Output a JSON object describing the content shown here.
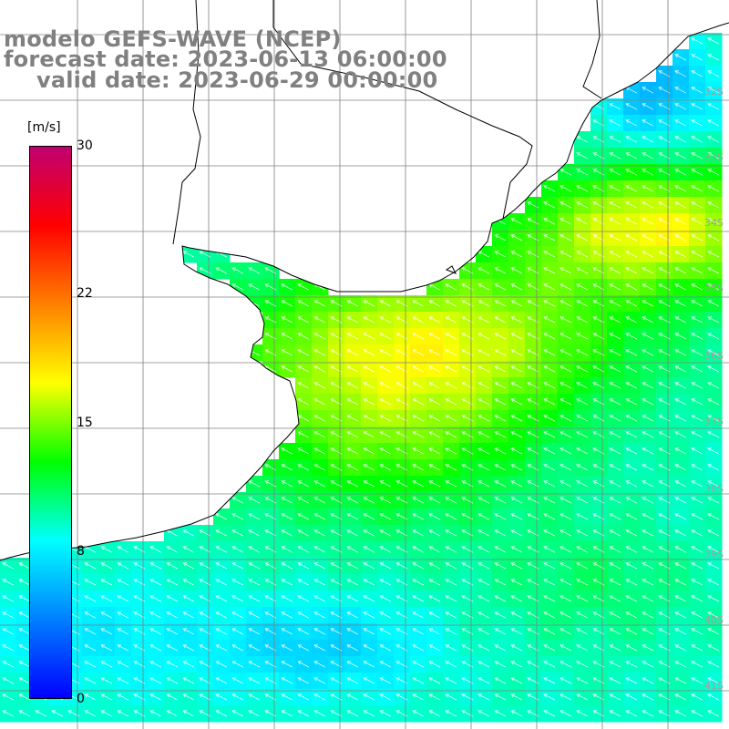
{
  "title": {
    "line1": "modelo GEFS-WAVE (NCEP)",
    "line2": "forecast date: 2023-06-13 06:00:00",
    "line3": "valid date: 2023-06-29 00:00:00"
  },
  "colorbar": {
    "unit": "[m/s]",
    "ticks": [
      "30",
      "22",
      "15",
      "8",
      "0"
    ],
    "tick_values": [
      30,
      22,
      15,
      8,
      0
    ],
    "range": [
      0,
      30
    ],
    "colors": [
      "#0000ff",
      "#0080ff",
      "#00ffff",
      "#00ff00",
      "#ffff00",
      "#ff8000",
      "#ff0000",
      "#c00070"
    ]
  },
  "lat_labels": [
    "32S",
    "33S",
    "34S",
    "35S",
    "36S",
    "37S",
    "38S",
    "39S",
    "40S",
    "41S"
  ],
  "colors": {
    "land": "#ffffff",
    "coast": "#000000",
    "grid": "#808080",
    "arrow": "#ffffff"
  }
}
